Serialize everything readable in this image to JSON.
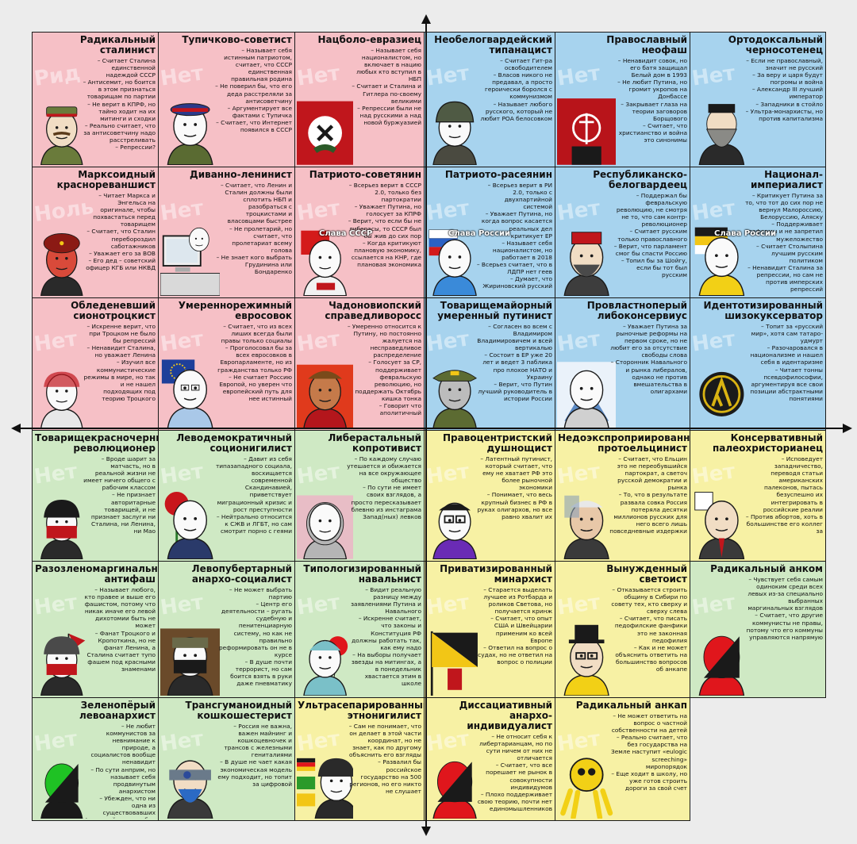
{
  "cells": [
    {
      "title": "Радикальный сталинист",
      "desc": "– Считает Сталина единственной надеждой СССР\n– Антисемит, но боится в этом признаться товарищам по партии\n– Не верит в КПРФ, но тайно ходит на их митинги и сходки\n– Реально считает, что за антисоветчину надо расстреливать\n– Репрессии?",
      "color": "red",
      "wm": "Рид",
      "art": "stalinist",
      "artColor": "#6a7b3b"
    },
    {
      "title": "Тупичково-советист",
      "desc": "– Называет себя истинным патриотом, считает, что СССР единственная правильная родина\n– Не поверил бы, что его деда расстреляли за антисоветчину\n– Аргументирует все фактами с Тупичка\n– Считает, что Интернет появился в СССР",
      "color": "red",
      "wm": "Нет",
      "art": "cap",
      "artColor": "#2b3a8a"
    },
    {
      "title": "Нацболо-евразиец",
      "desc": "– Называет себя националистом, но включает в нацию любых кто вступил в НБП\n– Считает и Сталина и Гитлера по-своему великими\n– Репрессии были не над русскими а над новой буржуазией",
      "color": "red",
      "wm": "Нет",
      "art": "natbol",
      "artColor": "#2b5a28"
    },
    {
      "title": "Необелогвардейский типанацист",
      "desc": "– Считает Гит-ра освободителем\n– Власов никого не предавал, а просто героически боролся с коммунизмом\n– Называет любого русского, который не любит РОА белосовком",
      "color": "blue",
      "wm": "Нет",
      "art": "helmet",
      "artColor": "#4f5a44"
    },
    {
      "title": "Православный неофаш",
      "desc": "– Ненавидит совок, но его батя защищал Белый дом в 1993\n– Не любит Путина, но громит укропов на Донбассе\n– Закрывает глаза на теории заговоров Борщового\n– Считает, что христианство и война это синонимы",
      "color": "blue",
      "wm": "Нет",
      "art": "flag",
      "artColor": "#b8141a"
    },
    {
      "title": "Ортодоксальный черносотенец",
      "desc": "– Если не православный, значит не русский\n– За веру и царя будут погромы и война\n– Александр III лучший император\n– Западники в стойло\n– Ультра-монархисты, но против капитализма",
      "color": "blue",
      "wm": "Нет",
      "art": "beard",
      "artColor": "#8a8a86"
    },
    {
      "title": "Марксоидный краснореваншист",
      "desc": "– Читает Маркса и Энгельса на оригинале, чтобы похвастаться перед товарищем\n– Считает, что Сталин перебороздил саботажников\n– Уважает его за ВОВ\n– Его дед – советский офицер КГБ или НКВД",
      "color": "red",
      "wm": "Ноль",
      "art": "fur",
      "artColor": "#8b1a14"
    },
    {
      "title": "Диванно-ленинист",
      "desc": "– Считает, что Ленин и Сталин должны были сплотить НБП и разобраться с троцкистами и власовцами быстрее\n– Не пролетарий, но считает, что пролетариат всему голова\n– Не знает кого выбрать Грудинина или Бондаренко",
      "color": "red",
      "wm": "Нет",
      "art": "pc",
      "artColor": "#d9d9d9"
    },
    {
      "title": "Патриото-советянин",
      "desc": "– Всерьез верит в СССР 2.0, только без партократии\n– Уважает Путина, но голосует за КПРФ\n– Верит, что если бы не либерасы, то СССР был бы жив до сих пор\n– Когда критикуют плановую экономику, ссылается на КНР, где плановая экономика",
      "color": "red",
      "wm": "Нет",
      "art": "ussr",
      "artColor": "#d41a1a",
      "overlay": "Слава СССР"
    },
    {
      "title": "Патриото-расеянин",
      "desc": "– Всерьез верит в РИ 2.0, только с двухпартийной системой\n– Уважает Путина, но когда вопрос касается реальных дел критикует ЕР\n– Называет себя националистом, но работает в 2018\n– Всерьез считает, что в ЛДПР нет геев\n– Думает, что Жириновский русский",
      "color": "blue",
      "wm": "Нет",
      "art": "ldpr",
      "artColor": "#2b61c4",
      "overlay": "Слава России"
    },
    {
      "title": "Республиканско-белогвардеец",
      "desc": "– Поддержал бы февральскую революцию, не смотря не то, что сам контр-революционер\n– Считает русским только православного\n– Верит, что парламент смог бы спасти Россию\n– Топил бы за Шойгу, если бы тот был русским",
      "color": "blue",
      "wm": "Нет",
      "art": "cossack",
      "artColor": "#3d3d3d"
    },
    {
      "title": "Национал-империалист",
      "desc": "– Критикует Путина за то, что тот до сих пор не вернул Малороссию, Белоруссию, Аляску\n– Поддерживает реформы и не запретил мужеложество\n– Считает Столыпина лучшим русским политиком\n– Ненавидит Сталина за репрессии, но сам не против имперских репрессий",
      "color": "blue",
      "wm": "Нет",
      "art": "imperial",
      "artColor": "#f2c616",
      "overlay": "Слава России"
    },
    {
      "title": "Обледеневший сионотроцкист",
      "desc": "– Искренне верит, что при Троцком не было бы репрессий\n– Ненавидит Сталина, но уважает Ленина\n– Изучил все коммунистические режимы в мире, но так и не нашел подходящих под теорию Троцкого",
      "color": "red",
      "wm": "Нет",
      "art": "wojak",
      "artColor": "#f2f2f2"
    },
    {
      "title": "Умереннорежимный евросовок",
      "desc": "– Считает, что из всех лиших всегда были правы только социалы\n– Проголосовал бы за всех евросовков в Европарламенте, но из гражданства только РФ\n– Не считает Россию Европой, но уверен что европейский путь для нее истинный",
      "color": "red",
      "wm": "Нет",
      "art": "eu",
      "artColor": "#1e3f9a"
    },
    {
      "title": "Чадоновиопский справедливоросс",
      "desc": "– Умеренно относится к Путину, но постоянно жалуется на несправедливое распределение\n– Голосует за СР, поддерживает февральскую революцию, но поддержать Октябрь кишка тонка\n– Говорит что аполитичный",
      "color": "red",
      "wm": "Нет",
      "art": "sr",
      "artColor": "#e03a1c"
    },
    {
      "title": "Товарищемайорный умеренный путинист",
      "desc": "– Согласен во всем с Владимиром Владимировичем и всей вертикалью\n– Состоит в ЕР уже 20 лет и ведет 3 паблика про плохое НАТО и Украину\n– Верит, что Путин лучший руководитель в истории России",
      "color": "blue",
      "wm": "Нет",
      "art": "officer",
      "artColor": "#5c6b32"
    },
    {
      "title": "Провластноперый либоконсервиус",
      "desc": "– Уважает Путина за рыночные реформы на первом сроке, но не любит его за отсутствие свободы слова\n– Сторонник Навального и рынка либералов, однако не против вмешательства в олигархами",
      "color": "blue",
      "wm": "Нет",
      "art": "liberal",
      "artColor": "#3a70b8"
    },
    {
      "title": "Идентотизированный шизокуксерватор",
      "desc": "– Топит за «русский мир», хотя сам татаро-удмурт\n– Разочаровался в национализме и нашел себя в идентаризме\n– Читает тонны псевдофилософии, аргументируя все свои позиции абстрактными понятиями",
      "color": "blue",
      "wm": "Нет",
      "art": "lambda",
      "artColor": "#d9b312"
    },
    {
      "title": "Товарищекрасночерный революционер",
      "desc": "– Вроде шарит за матчасть, но в реальной жизни не имеет ничего общего с рабочим классом\n– Не признает авторитарные товарищей, и не признает заслуги ни Сталина, ни Ленина, ни Мао",
      "color": "green",
      "wm": "Нет",
      "art": "antifa",
      "artColor": "#c0161c"
    },
    {
      "title": "Леводемократичный соционигилист",
      "desc": "– Давит из себя типазападного социала, восхищается современной Скандинавией, приветствует миграционный кризис и рост преступности\n– Нейтрально относится к СЖВ и ЛГБТ, но сам смотрит порно с геями",
      "color": "green",
      "wm": "Нет",
      "art": "rose",
      "artColor": "#c8161c"
    },
    {
      "title": "Либерастальный копротивист",
      "desc": "– По каждому случаю утешается и обижается на все окружающее общество\n– По сути не имеет своих взглядов, а просто пересказывает блевню из инстаграма Запад(ных) левков",
      "color": "green",
      "wm": "Нет",
      "art": "hijab",
      "artColor": "#b5b5b5"
    },
    {
      "title": "Правоцентристский душнощист",
      "desc": "– Латентный путинист, который считает, что ему не хватает РФ это более рыночной экономики\n– Понимает, что весь крупный бизнес в РФ в руках олигархов, но все равно хвалит их",
      "color": "yellow",
      "wm": "Нет",
      "art": "glasses",
      "artColor": "#6a2bb5"
    },
    {
      "title": "Недоэкспроприированный протоельцинист",
      "desc": "– Считает, что Ельцин это не переобувшийся партократ, а светоч русской демократии и рынка\n– То, что в результате развала совка Россия потеряла десятки миллионов русских для него всего лишь повседневные издержки",
      "color": "yellow",
      "wm": "Нет",
      "art": "yeltsin",
      "artColor": "#8aa0b8"
    },
    {
      "title": "Консервативный палеохристорианец",
      "desc": "– Исповедует западничество, переводя статьи американских палеконов, пытась безуспешно их интегрировать в российские реалии\n– Против абортов, хоть в большинстве его коллег за",
      "color": "yellow",
      "wm": "Нет",
      "art": "suit",
      "artColor": "#3a3a3a"
    },
    {
      "title": "Разозленомаргинальный антифаш",
      "desc": "– Называет любого, кто правее и выше его фашистом, потому что никак иначе его левой дихотомии быть не может\n– Фанат Троцкого и Кропоткина, но не фанат Ленина, а Сталина считает тупо фашем под красными знаменами",
      "color": "green",
      "wm": "Нет",
      "art": "beanie",
      "artColor": "#c0161c"
    },
    {
      "title": "Левопубертарный анархо-социалист",
      "desc": "– Не может выбрать партию\n– Центр его деятельности – ругать судебную и пенитенциарную систему, но как не правильно реформировать он не в курсе\n– В душе почти террорист, но сам боится взять в руки даже пневматику",
      "color": "green",
      "wm": "Нет",
      "art": "mask",
      "artColor": "#7a3a1a"
    },
    {
      "title": "Типологизированный навальнист",
      "desc": "– Видит реальную разницу между заявлениями Путина и Навального\n– Искренне считает, что законы и Конституция РФ должны работать так, как ему надо\n– На выборы получает звезды на митингах, а в понедельник хвастается этим в школе",
      "color": "green",
      "wm": "Нет",
      "art": "balloon",
      "artColor": "#e0161c"
    },
    {
      "title": "Приватизированный минархист",
      "desc": "– Старается выделать лучшее из Ротбарда и роликов Светова, но получается кринж\n– Считает, что опыт США и Швейцарии применим ко всей Европе\n– Ответил на вопрос о судах, но не ответил на вопрос о полиции",
      "color": "yellow",
      "wm": "Нет",
      "art": "ancapflag",
      "artColor": "#f2c616"
    },
    {
      "title": "Вынужденный светоист",
      "desc": "– Отказывается строить общину в Сибири по совету тех, кто сверху и сверху слева\n– Считает, что писать педофилские фанфики это не законная педофилия\n– Как и не может объяснить ответить на большинство вопросов об анкапе",
      "color": "yellow",
      "wm": "Нет",
      "art": "tophat",
      "artColor": "#1a1a1a"
    },
    {
      "title": "Радикальный анком",
      "desc": "– Чувствует себя самым одиноким среди всех левых из-за специально выбранных маргинальных взглядов\n– Считает, что другие коммунисты не правы, потому что его коммуны управляются напрямую",
      "color": "green",
      "wm": "Нет",
      "art": "ancom",
      "artColor": "#e0161c"
    },
    {
      "title": "Зеленопёрый левоанархист",
      "desc": "– Не любит коммунистов за невнимание к природе, а социалистов вообще ненавидит\n– По сути анприм, но называет себя продвинутым анархистом\n– Убежден, что ни одна из существовавших формаций не способна решить вопрос с экологией, но не может выдумать свою",
      "color": "green",
      "wm": "Нет",
      "art": "green",
      "artColor": "#1fc224"
    },
    {
      "title": "Трансгуманоидный кошкошестерист",
      "desc": "– Россия не важна, важен майнинг и кошкоцевночек и трансов с железными гениталиями\n– В душе не чает какая экономическая модель ему подходит, но топит за цифровой",
      "color": "green",
      "wm": "Нет",
      "art": "cyber",
      "artColor": "#2b4a9a"
    },
    {
      "title": "Ультрасепарированный этнонигилист",
      "desc": "– Сам не понимает, что он делает в этой части координат, но не знает, как по другому объяснить его взгляды\n– Развалил бы российское государство на 500 регионов, но его никто не слушает",
      "color": "yellow",
      "wm": "Нет",
      "art": "separ",
      "artColor": "#2a2a2a"
    },
    {
      "title": "Диссациативный анархо-индивидуалист",
      "desc": "– Не относит себя к либертарианцам, но по сути ничем от них не отличается\n– Считает, что все порешает не рынок в совокупности индивидумов\n– Плохо поддерживает свою теорию, почти нет единомышленников",
      "color": "yellow",
      "wm": "Нет",
      "art": "ancap",
      "artColor": "#e0161c"
    },
    {
      "title": "Радикальный анкап",
      "desc": "– Не может ответить на вопрос о частной собственности на детей\n– Реально считает, что без государства на Земле наступит «eulogic screeching» миропорядок\n– Еще ходит в школу, но уже готов строить дороги за свой счет",
      "color": "yellow",
      "wm": "Нет",
      "art": "crouch",
      "artColor": "#f2d016"
    }
  ]
}
